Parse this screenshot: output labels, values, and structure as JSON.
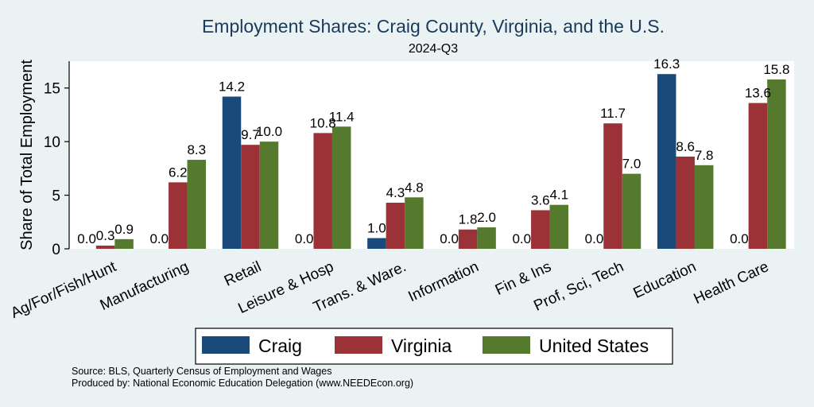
{
  "chart_data": {
    "type": "bar",
    "title": "Employment Shares: Craig County, Virginia, and the U.S.",
    "subtitle": "2024-Q3",
    "xlabel": "",
    "ylabel": "Share of Total Employment",
    "ylim": [
      0,
      17.5
    ],
    "yticks": [
      0,
      5,
      10,
      15
    ],
    "categories": [
      "Ag/For/Fish/Hunt",
      "Manufacturing",
      "Retail",
      "Leisure & Hosp",
      "Trans. & Ware.",
      "Information",
      "Fin & Ins",
      "Prof, Sci, Tech",
      "Education",
      "Health Care"
    ],
    "series": [
      {
        "name": "Craig",
        "color": "#1a4a7a",
        "values": [
          0.0,
          0.0,
          14.2,
          0.0,
          1.0,
          0.0,
          0.0,
          0.0,
          16.3,
          0.0
        ],
        "labels": [
          "0.0",
          "0.0",
          "14.2",
          "0.0",
          "1.0",
          "0.0",
          "0.0",
          "0.0",
          "16.3",
          "0.0"
        ]
      },
      {
        "name": "Virginia",
        "color": "#9b3238",
        "values": [
          0.3,
          6.2,
          9.7,
          10.8,
          4.3,
          1.8,
          3.6,
          11.7,
          8.6,
          13.6
        ],
        "labels": [
          "0.3",
          "6.2",
          "9.7",
          "10.8",
          "4.3",
          "1.8",
          "3.6",
          "11.7",
          "8.6",
          "13.6"
        ]
      },
      {
        "name": "United States",
        "color": "#557a2e",
        "values": [
          0.9,
          8.3,
          10.0,
          11.4,
          4.8,
          2.0,
          4.1,
          7.0,
          7.8,
          15.8
        ],
        "labels": [
          "0.9",
          "8.3",
          "10.0",
          "11.4",
          "4.8",
          "2.0",
          "4.1",
          "7.0",
          "7.8",
          "15.8"
        ]
      }
    ],
    "grid": false,
    "legend_position": "bottom"
  },
  "source": {
    "line1": "Source: BLS, Quarterly Census of Employment and Wages",
    "line2": "Produced by: National Economic Education Delegation (www.NEEDEcon.org)"
  }
}
